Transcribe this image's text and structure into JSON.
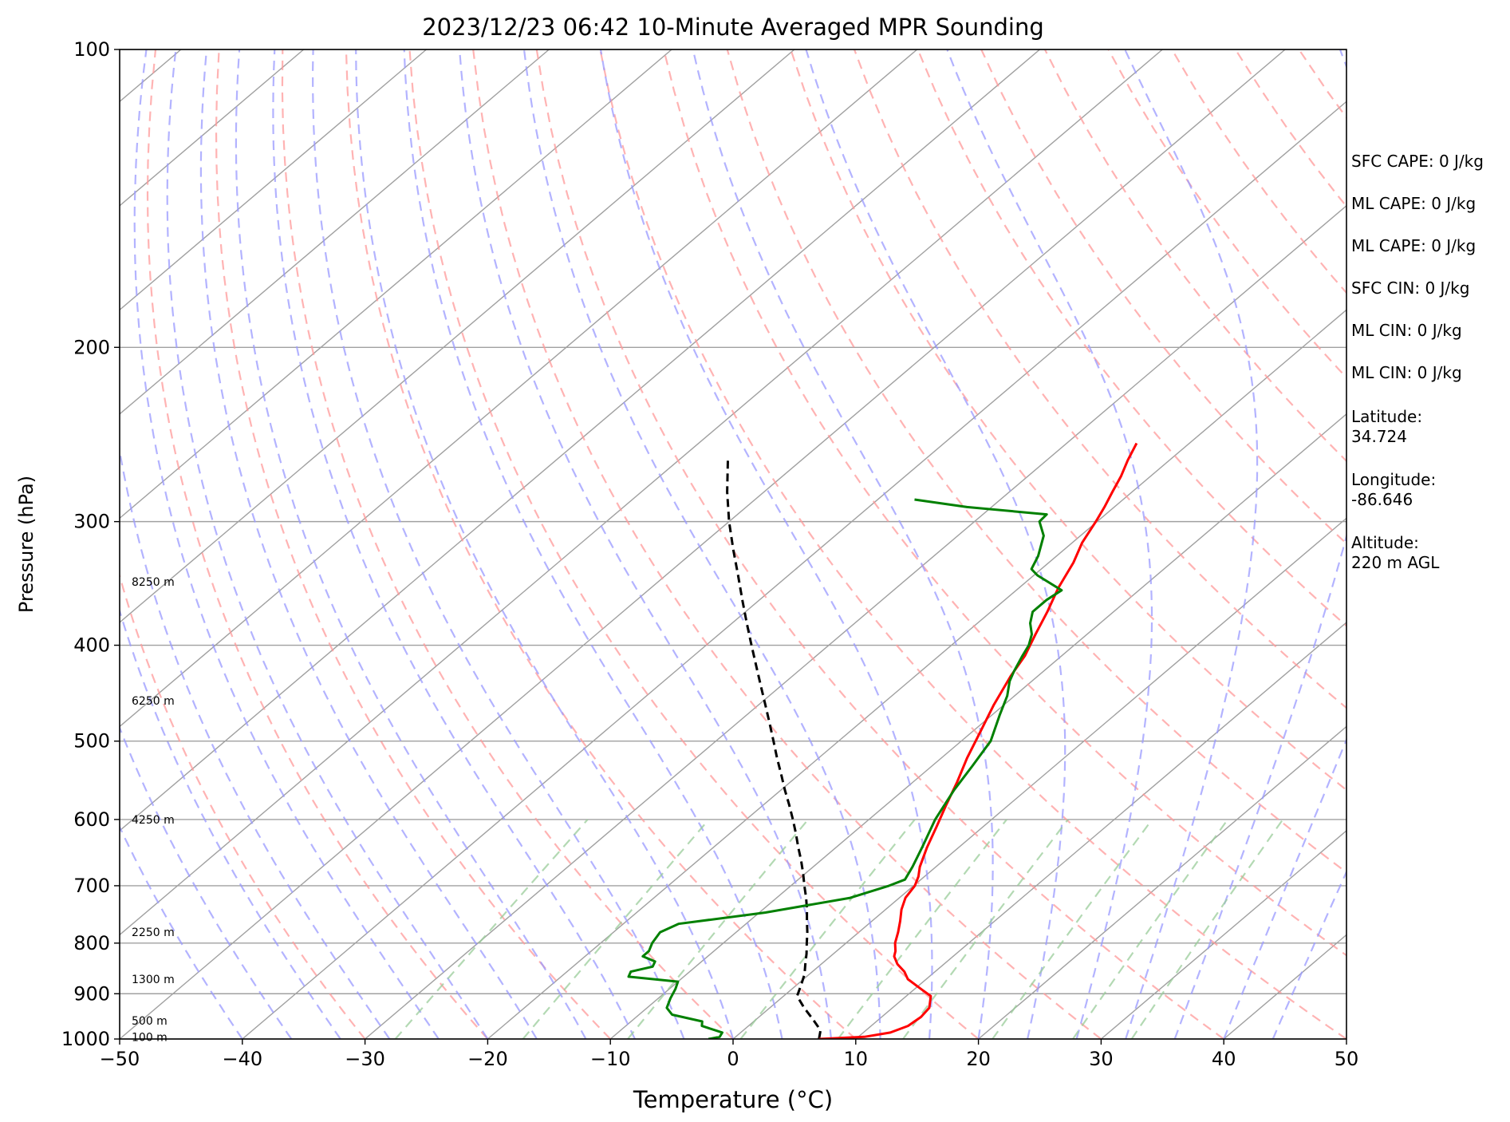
{
  "chart_data": {
    "type": "skew-t sounding",
    "title": "2023/12/23 06:42 10-Minute Averaged MPR Sounding",
    "xlabel": "Temperature (°C)",
    "ylabel": "Pressure (hPa)",
    "xlim": [
      -50,
      50
    ],
    "ylim": [
      1000,
      100
    ],
    "y_scale": "log",
    "x_ticks": [
      "−50",
      "−40",
      "−30",
      "−20",
      "−10",
      "0",
      "10",
      "20",
      "30",
      "40",
      "50"
    ],
    "x_tick_values": [
      -50,
      -40,
      -30,
      -20,
      -10,
      0,
      10,
      20,
      30,
      40,
      50
    ],
    "y_ticks": [
      "100",
      "200",
      "300",
      "400",
      "500",
      "600",
      "700",
      "800",
      "900",
      "1000"
    ],
    "y_tick_values": [
      100,
      200,
      300,
      400,
      500,
      600,
      700,
      800,
      900,
      1000
    ],
    "height_labels": [
      {
        "text": "8250 m",
        "p": 345
      },
      {
        "text": "6250 m",
        "p": 455
      },
      {
        "text": "4250 m",
        "p": 600
      },
      {
        "text": "2250 m",
        "p": 780
      },
      {
        "text": "1300 m",
        "p": 870
      },
      {
        "text": "500 m",
        "p": 958
      },
      {
        "text": "100 m",
        "p": 995
      }
    ],
    "temperature": {
      "color": "#ff0000",
      "points": [
        [
          1000,
          7
        ],
        [
          995,
          10.5
        ],
        [
          985,
          12.2
        ],
        [
          970,
          13
        ],
        [
          950,
          13.2
        ],
        [
          930,
          13
        ],
        [
          905,
          12
        ],
        [
          890,
          10.5
        ],
        [
          870,
          8.5
        ],
        [
          855,
          7.5
        ],
        [
          840,
          6.2
        ],
        [
          825,
          5.2
        ],
        [
          815,
          4.8
        ],
        [
          800,
          4
        ],
        [
          780,
          3.2
        ],
        [
          760,
          2.3
        ],
        [
          740,
          1.3
        ],
        [
          720,
          0.5
        ],
        [
          700,
          0.1
        ],
        [
          685,
          -0.5
        ],
        [
          670,
          -1.3
        ],
        [
          640,
          -2.6
        ],
        [
          610,
          -3.8
        ],
        [
          580,
          -5.1
        ],
        [
          550,
          -6.4
        ],
        [
          520,
          -7.9
        ],
        [
          490,
          -9.3
        ],
        [
          460,
          -10.8
        ],
        [
          430,
          -12.2
        ],
        [
          410,
          -13
        ],
        [
          390,
          -14.2
        ],
        [
          370,
          -15.4
        ],
        [
          350,
          -16.8
        ],
        [
          330,
          -18
        ],
        [
          315,
          -19.2
        ],
        [
          300,
          -20.1
        ],
        [
          290,
          -20.8
        ],
        [
          280,
          -21.6
        ],
        [
          270,
          -22.4
        ],
        [
          260,
          -23.4
        ],
        [
          250,
          -24.3
        ]
      ]
    },
    "dewpoint": {
      "color": "#008000",
      "points": [
        [
          1000,
          -2
        ],
        [
          995,
          -1.3
        ],
        [
          985,
          -1.5
        ],
        [
          970,
          -3.8
        ],
        [
          960,
          -4.2
        ],
        [
          945,
          -7.3
        ],
        [
          930,
          -8.4
        ],
        [
          910,
          -9
        ],
        [
          890,
          -9.5
        ],
        [
          875,
          -10
        ],
        [
          865,
          -14.5
        ],
        [
          855,
          -14.8
        ],
        [
          845,
          -13.5
        ],
        [
          835,
          -13.8
        ],
        [
          825,
          -15.3
        ],
        [
          815,
          -15.3
        ],
        [
          800,
          -15.8
        ],
        [
          780,
          -16.2
        ],
        [
          765,
          -15.5
        ],
        [
          745,
          -9.5
        ],
        [
          720,
          -4
        ],
        [
          700,
          -2
        ],
        [
          690,
          -1.3
        ],
        [
          670,
          -1.9
        ],
        [
          640,
          -3
        ],
        [
          600,
          -4.6
        ],
        [
          560,
          -5.9
        ],
        [
          530,
          -6.7
        ],
        [
          500,
          -7.6
        ],
        [
          470,
          -9.4
        ],
        [
          450,
          -10.6
        ],
        [
          435,
          -11.8
        ],
        [
          425,
          -12.4
        ],
        [
          410,
          -13.2
        ],
        [
          400,
          -13.7
        ],
        [
          390,
          -14.5
        ],
        [
          380,
          -15.7
        ],
        [
          370,
          -16.6
        ],
        [
          360,
          -16.6
        ],
        [
          352,
          -16.3
        ],
        [
          340,
          -19.7
        ],
        [
          335,
          -20.8
        ],
        [
          325,
          -21.5
        ],
        [
          310,
          -23
        ],
        [
          300,
          -24.7
        ],
        [
          295,
          -24.8
        ],
        [
          290,
          -32
        ],
        [
          285,
          -37
        ]
      ]
    },
    "parcel": {
      "color": "#000000",
      "points": [
        [
          1000,
          7
        ],
        [
          980,
          6.3
        ],
        [
          955,
          4.6
        ],
        [
          930,
          2.8
        ],
        [
          905,
          1.1
        ],
        [
          880,
          0.3
        ],
        [
          860,
          -0.4
        ],
        [
          840,
          -1.3
        ],
        [
          820,
          -2.2
        ],
        [
          800,
          -3.2
        ],
        [
          780,
          -4.2
        ],
        [
          760,
          -5.3
        ],
        [
          740,
          -6.4
        ],
        [
          720,
          -7.6
        ],
        [
          700,
          -8.9
        ],
        [
          680,
          -10.2
        ],
        [
          660,
          -11.6
        ],
        [
          640,
          -13.1
        ],
        [
          620,
          -14.6
        ],
        [
          600,
          -16.2
        ],
        [
          580,
          -17.9
        ],
        [
          560,
          -19.7
        ],
        [
          540,
          -21.5
        ],
        [
          520,
          -23.4
        ],
        [
          500,
          -25.3
        ],
        [
          480,
          -27.3
        ],
        [
          460,
          -29.4
        ],
        [
          440,
          -31.6
        ],
        [
          420,
          -33.9
        ],
        [
          400,
          -36.3
        ],
        [
          380,
          -38.8
        ],
        [
          360,
          -41.4
        ],
        [
          340,
          -44.1
        ],
        [
          320,
          -47
        ],
        [
          300,
          -50
        ],
        [
          280,
          -53
        ],
        [
          260,
          -56
        ]
      ]
    },
    "annotations": [
      {
        "text": "SFC CAPE: 0 J/kg"
      },
      {
        "text": "ML CAPE: 0 J/kg"
      },
      {
        "text": "ML CAPE: 0 J/kg"
      },
      {
        "text": "SFC CIN: 0 J/kg"
      },
      {
        "text": "ML CIN: 0 J/kg"
      },
      {
        "text": "ML CIN: 0 J/kg"
      },
      {
        "text": "Latitude:\n34.724"
      },
      {
        "text": "Longitude:\n-86.646"
      },
      {
        "text": "Altitude:\n220 m AGL"
      }
    ],
    "background": {
      "isotherm_color": "#a0a0a0",
      "isobar_color": "#a0a0a0",
      "dry_adiabat_color": "#ff9999",
      "moist_adiabat_color": "#9999ff",
      "mixing_ratio_color": "#99cc99"
    }
  }
}
